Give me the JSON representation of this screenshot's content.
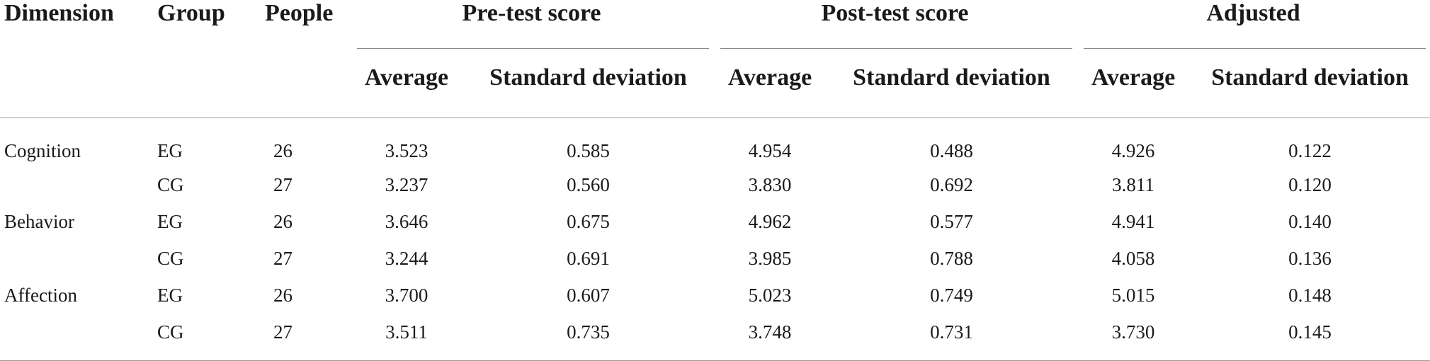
{
  "headers": {
    "dimension": "Dimension",
    "group": "Group",
    "people": "People",
    "pre_test": "Pre-test score",
    "post_test": "Post-test score",
    "adjusted": "Adjusted",
    "average": "Average",
    "std_dev": "Standard deviation"
  },
  "rows": [
    {
      "dimension": "Cognition",
      "group": "EG",
      "people": "26",
      "pre_avg": "3.523",
      "pre_sd": "0.585",
      "post_avg": "4.954",
      "post_sd": "0.488",
      "adj_avg": "4.926",
      "adj_sd": "0.122"
    },
    {
      "dimension": "",
      "group": "CG",
      "people": "27",
      "pre_avg": "3.237",
      "pre_sd": "0.560",
      "post_avg": "3.830",
      "post_sd": "0.692",
      "adj_avg": "3.811",
      "adj_sd": "0.120"
    },
    {
      "dimension": "Behavior",
      "group": "EG",
      "people": "26",
      "pre_avg": "3.646",
      "pre_sd": "0.675",
      "post_avg": "4.962",
      "post_sd": "0.577",
      "adj_avg": "4.941",
      "adj_sd": "0.140"
    },
    {
      "dimension": "",
      "group": "CG",
      "people": "27",
      "pre_avg": "3.244",
      "pre_sd": "0.691",
      "post_avg": "3.985",
      "post_sd": "0.788",
      "adj_avg": "4.058",
      "adj_sd": "0.136"
    },
    {
      "dimension": "Affection",
      "group": "EG",
      "people": "26",
      "pre_avg": "3.700",
      "pre_sd": "0.607",
      "post_avg": "5.023",
      "post_sd": "0.749",
      "adj_avg": "5.015",
      "adj_sd": "0.148"
    },
    {
      "dimension": "",
      "group": "CG",
      "people": "27",
      "pre_avg": "3.511",
      "pre_sd": "0.735",
      "post_avg": "3.748",
      "post_sd": "0.731",
      "adj_avg": "3.730",
      "adj_sd": "0.145"
    }
  ]
}
